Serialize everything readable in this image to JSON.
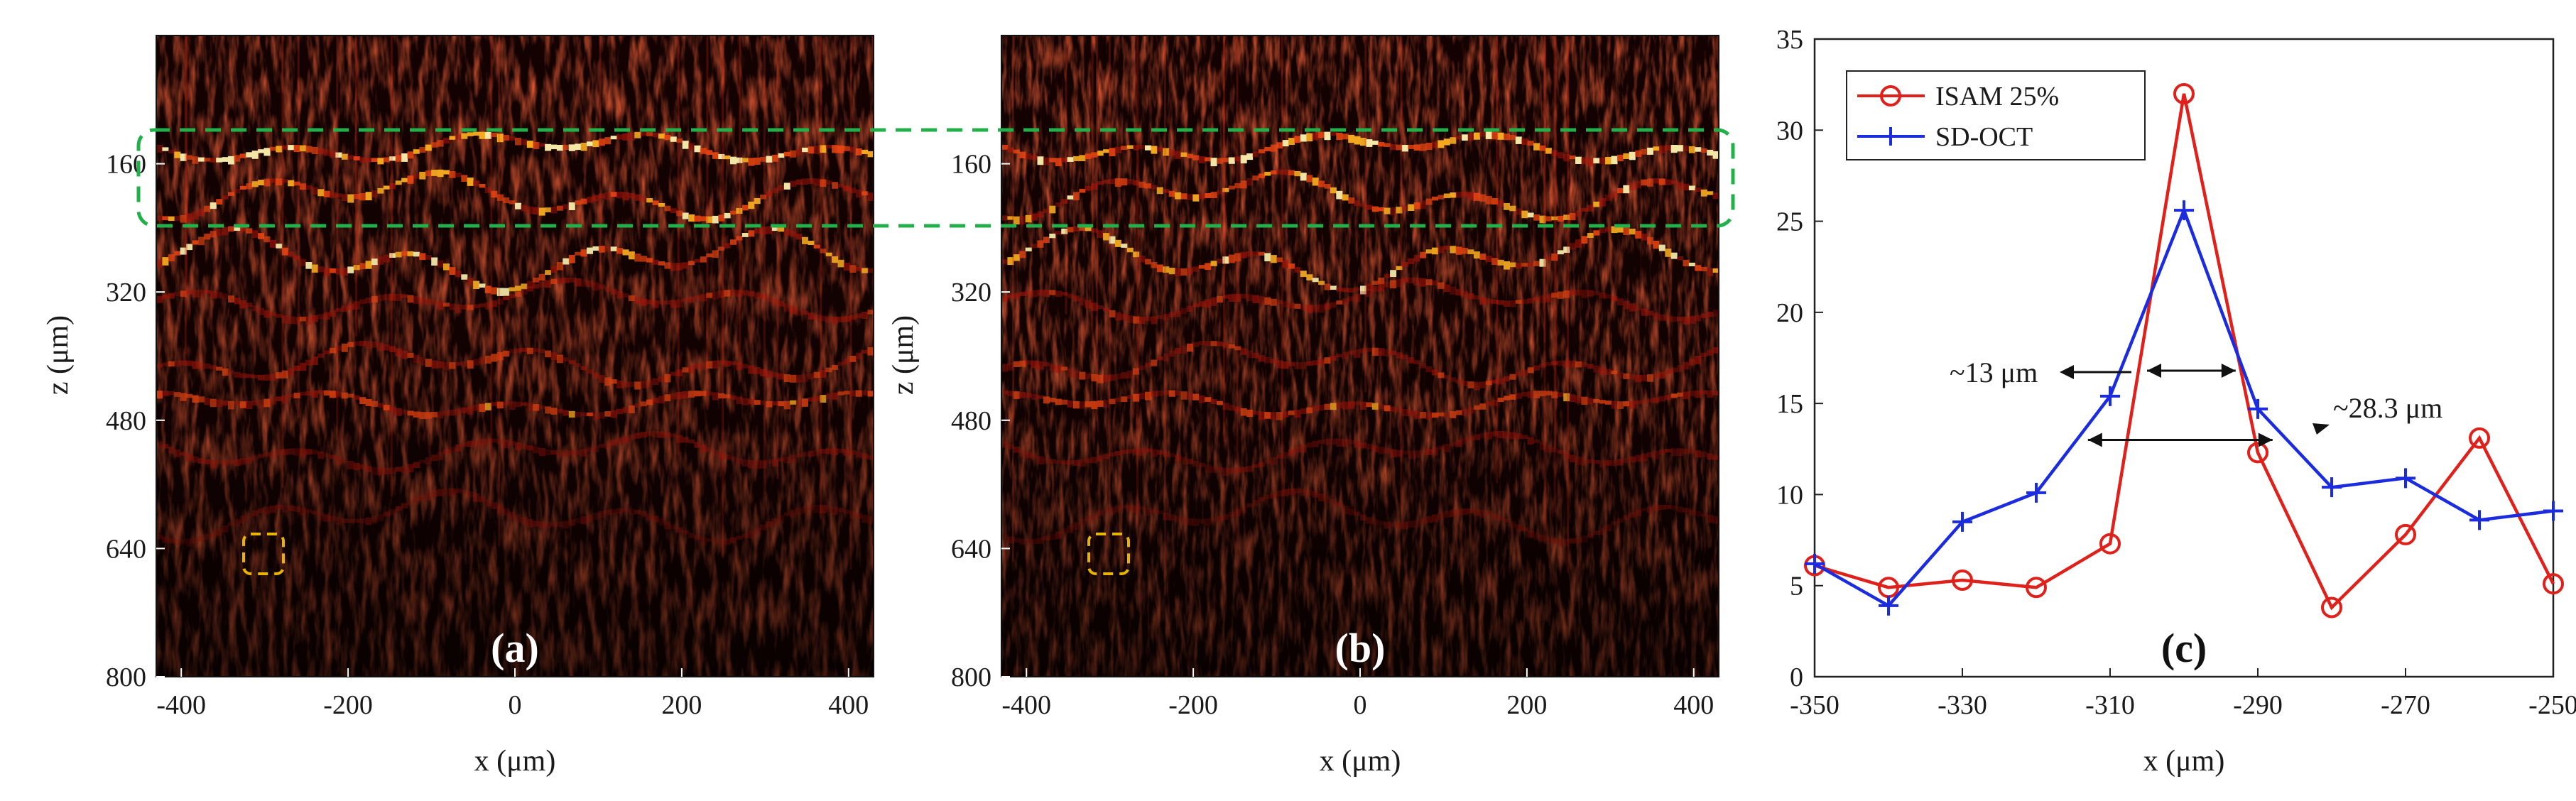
{
  "figure": {
    "panels": [
      {
        "id": "a",
        "panel_label": "(a)",
        "xlabel": "x (μm)",
        "ylabel": "z (μm)",
        "xticks": [
          "-400",
          "-200",
          "0",
          "200",
          "400"
        ],
        "yticks": [
          "160",
          "320",
          "480",
          "640",
          "800"
        ],
        "x_range": [
          -430,
          430
        ],
        "z_range": [
          0,
          800
        ]
      },
      {
        "id": "b",
        "panel_label": "(b)",
        "xlabel": "x (μm)",
        "ylabel": "z (μm)",
        "xticks": [
          "-400",
          "-200",
          "0",
          "200",
          "400"
        ],
        "yticks": [
          "160",
          "320",
          "480",
          "640",
          "800"
        ],
        "x_range": [
          -430,
          430
        ],
        "z_range": [
          0,
          800
        ]
      }
    ],
    "colors": {
      "heat_low": "#140202",
      "heat_mid": "#c41a0a",
      "heat_high": "#fff3b0",
      "dashed_green": "#22b04a",
      "dashed_yellow": "#e8b400",
      "isam": "#e0211b",
      "sdoct": "#1a2be0"
    }
  },
  "chart_data": {
    "type": "line",
    "panel_label": "(c)",
    "xlabel": "x (μm)",
    "ylabel": "",
    "xlim": [
      -350,
      -250
    ],
    "ylim": [
      0,
      35
    ],
    "xticks": [
      "-350",
      "-330",
      "-310",
      "-290",
      "-270",
      "-250"
    ],
    "yticks": [
      "0",
      "5",
      "10",
      "15",
      "20",
      "25",
      "30",
      "35"
    ],
    "x": [
      -350,
      -340,
      -330,
      -320,
      -310,
      -300,
      -290,
      -280,
      -270,
      -260,
      -250
    ],
    "series": [
      {
        "name": "ISAM 25%",
        "marker": "circle",
        "values": [
          6.1,
          4.9,
          5.3,
          4.9,
          7.3,
          32.0,
          12.3,
          3.8,
          7.8,
          13.1,
          5.1
        ]
      },
      {
        "name": "SD-OCT",
        "marker": "plus",
        "values": [
          6.2,
          3.9,
          8.5,
          10.1,
          15.4,
          25.6,
          14.7,
          10.4,
          10.9,
          8.6,
          9.1
        ]
      }
    ],
    "annotations": [
      {
        "text": "~13 μm",
        "from_x": -305,
        "to_x": -293,
        "y": 16.8
      },
      {
        "text": "~28.3 μm",
        "from_x": -313,
        "to_x": -288,
        "y": 13.0
      }
    ],
    "legend": "top-left"
  }
}
